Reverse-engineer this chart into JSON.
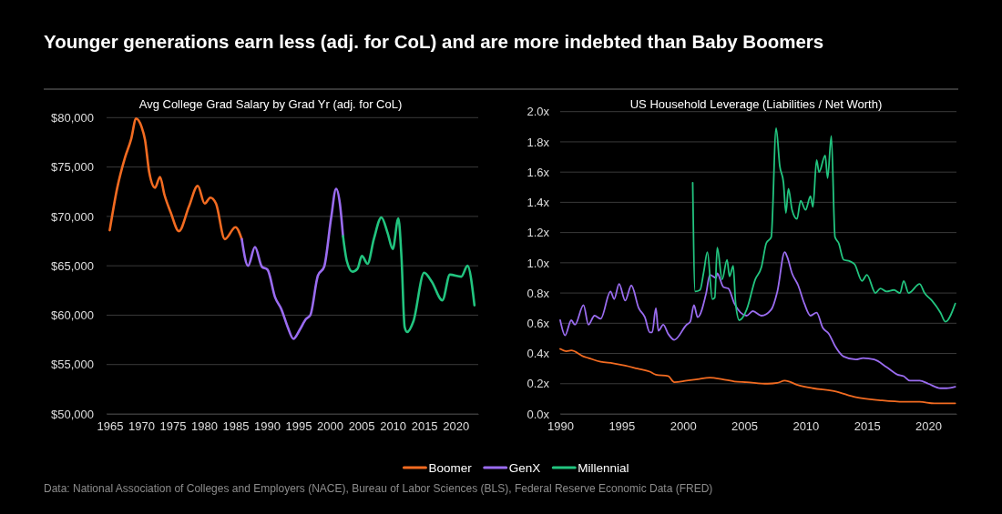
{
  "chart_data": [
    {
      "type": "other",
      "title": "Younger generations earn less (adj. for CoL) and are more indebted than Baby Boomers",
      "annotations": [
        "Data: National Association of Colleges and Employers (NACE), Bureau of Labor Sciences (BLS), Federal Reserve Economic Data (FRED)"
      ]
    },
    {
      "type": "line",
      "title": "Avg College Grad Salary by Grad Yr (adj. for CoL)",
      "xlim": [
        1964.5,
        2023.6
      ],
      "xticks": [
        1965,
        1970,
        1975,
        1980,
        1985,
        1990,
        1995,
        2000,
        2005,
        2010,
        2015,
        2020
      ],
      "ylim": [
        50000,
        80000
      ],
      "yticks": [
        {
          "value": 50000,
          "label": "$50,000"
        },
        {
          "value": 55000,
          "label": "$55,000"
        },
        {
          "value": 60000,
          "label": "$60,000"
        },
        {
          "value": 65000,
          "label": "$65,000"
        },
        {
          "value": 70000,
          "label": "$70,000"
        },
        {
          "value": 75000,
          "label": "$75,000"
        },
        {
          "value": 80000,
          "label": "$80,000"
        }
      ],
      "grid": "y",
      "series": [
        {
          "color": "#f26b21",
          "x": [
            1965,
            1966.2,
            1967.4,
            1968.4,
            1969.2,
            1970.1,
            1970.6,
            1971.3,
            1972.2,
            1973,
            1973.7,
            1974.7,
            1976,
            1977.6,
            1979,
            1980.1,
            1981,
            1981.9,
            1983.3,
            1985,
            1986
          ],
          "values": [
            68600,
            72900,
            75900,
            77800,
            79900,
            79000,
            77800,
            74400,
            72900,
            74000,
            72200,
            70400,
            68500,
            71000,
            73100,
            71300,
            71900,
            71300,
            67700,
            68900,
            67700
          ]
        },
        {
          "color": "#9a6cf0",
          "x": [
            1986,
            1987,
            1988.1,
            1989.2,
            1990.1,
            1991.3,
            1992.3,
            1993.3,
            1994.2,
            1995.2,
            1996.2,
            1996.9,
            1998.1,
            1999.1,
            2000.2,
            2001,
            2001.6,
            2002.1
          ],
          "values": [
            67700,
            65000,
            66900,
            64900,
            64600,
            61800,
            60600,
            58800,
            57600,
            58500,
            59600,
            60000,
            64000,
            64900,
            69800,
            72800,
            71300,
            68000
          ]
        },
        {
          "color": "#22c47f",
          "x": [
            2002.1,
            2002.7,
            2003.6,
            2004.4,
            2005.1,
            2006,
            2007,
            2008.2,
            2009.2,
            2010,
            2010.9,
            2011.4,
            2011.9,
            2012.3,
            2013.3,
            2015,
            2016.2,
            2017.9,
            2019.1,
            2020.9,
            2021.9,
            2023
          ],
          "values": [
            68000,
            65500,
            64400,
            64700,
            66000,
            65200,
            67700,
            69900,
            68300,
            66700,
            69800,
            65800,
            58800,
            58300,
            59400,
            64300,
            63400,
            61500,
            64100,
            63900,
            65000,
            61000
          ]
        }
      ]
    },
    {
      "type": "line",
      "title": "US Household Leverage (Liabilities / Net Worth)",
      "xlim": [
        1990,
        2022.3
      ],
      "xticks": [
        1990,
        1995,
        2000,
        2005,
        2010,
        2015,
        2020
      ],
      "ylim": [
        0,
        2
      ],
      "yticks": [
        {
          "value": 0,
          "label": "0.0x"
        },
        {
          "value": 0.2,
          "label": "0.2x"
        },
        {
          "value": 0.4,
          "label": "0.4x"
        },
        {
          "value": 0.6,
          "label": "0.6x"
        },
        {
          "value": 0.8,
          "label": "0.8x"
        },
        {
          "value": 1,
          "label": "1.0x"
        },
        {
          "value": 1.2,
          "label": "1.2x"
        },
        {
          "value": 1.4,
          "label": "1.4x"
        },
        {
          "value": 1.6,
          "label": "1.6x"
        },
        {
          "value": 1.8,
          "label": "1.8x"
        },
        {
          "value": 2,
          "label": "2.0x"
        }
      ],
      "grid": "y",
      "legend": "bottom",
      "series": [
        {
          "name": "Boomer",
          "color": "#f26b21",
          "x": [
            1990,
            1990.5,
            1990.9,
            1991.9,
            1992.3,
            1993.3,
            1994.3,
            1995.3,
            1996.3,
            1997.3,
            1997.8,
            1998.8,
            1999.3,
            2000.3,
            2001.2,
            2002.2,
            2003.2,
            2004.2,
            2005.2,
            2006.9,
            2007.7,
            2008.3,
            2009.4,
            2010.6,
            2012.4,
            2014.1,
            2016.1,
            2018,
            2019.3,
            2020.5,
            2021.5,
            2022.2
          ],
          "values": [
            0.43,
            0.415,
            0.42,
            0.38,
            0.37,
            0.345,
            0.335,
            0.32,
            0.3,
            0.28,
            0.26,
            0.25,
            0.21,
            0.22,
            0.23,
            0.24,
            0.23,
            0.215,
            0.21,
            0.2,
            0.205,
            0.22,
            0.19,
            0.17,
            0.15,
            0.11,
            0.09,
            0.08,
            0.08,
            0.07,
            0.07,
            0.07
          ]
        },
        {
          "name": "GenX",
          "color": "#9a6cf0",
          "x": [
            1990,
            1990.4,
            1990.9,
            1991.2,
            1991.9,
            1992.3,
            1992.8,
            1993.3,
            1994.1,
            1994.4,
            1994.8,
            1995.3,
            1995.8,
            1996.4,
            1996.9,
            1997.3,
            1997.5,
            1997.8,
            1998,
            1998.4,
            1998.8,
            1999.3,
            2000.3,
            2000.6,
            2000.9,
            2001.2,
            2001.9,
            2002.2,
            2002.7,
            2002.8,
            2003.3,
            2003.7,
            2004.2,
            2005.2,
            2005.7,
            2006.4,
            2007.2,
            2007.7,
            2008.3,
            2008.5,
            2008.9,
            2009.4,
            2009.9,
            2010.4,
            2010.9,
            2011.4,
            2011.9,
            2012.4,
            2013.1,
            2014.1,
            2014.7,
            2015.6,
            2016.6,
            2017.5,
            2018,
            2018.5,
            2019.3,
            2020,
            2021,
            2021.5,
            2022.2
          ],
          "values": [
            0.62,
            0.52,
            0.62,
            0.59,
            0.72,
            0.59,
            0.65,
            0.63,
            0.81,
            0.76,
            0.86,
            0.75,
            0.85,
            0.7,
            0.64,
            0.54,
            0.54,
            0.7,
            0.55,
            0.59,
            0.53,
            0.49,
            0.59,
            0.61,
            0.72,
            0.64,
            0.8,
            0.92,
            0.9,
            0.93,
            0.84,
            0.83,
            0.73,
            0.65,
            0.68,
            0.65,
            0.69,
            0.81,
            1.07,
            1.04,
            0.93,
            0.85,
            0.73,
            0.65,
            0.67,
            0.57,
            0.53,
            0.45,
            0.38,
            0.36,
            0.37,
            0.36,
            0.31,
            0.26,
            0.25,
            0.22,
            0.22,
            0.2,
            0.17,
            0.17,
            0.18
          ]
        },
        {
          "name": "Millennial",
          "color": "#22c47f",
          "x": [
            2000.8,
            2001,
            2001.4,
            2001.7,
            2002,
            2002.4,
            2002.6,
            2002.8,
            2003.2,
            2003.6,
            2003.8,
            2004.1,
            2004.3,
            2004.6,
            2005.2,
            2005.9,
            2006.4,
            2006.8,
            2007.2,
            2007.6,
            2007.9,
            2008.2,
            2008.4,
            2008.6,
            2008.9,
            2009.3,
            2009.6,
            2010,
            2010.4,
            2010.6,
            2010.9,
            2011.1,
            2011.6,
            2011.8,
            2012.1,
            2012.4,
            2012.7,
            2013.1,
            2013.6,
            2014,
            2014.6,
            2015,
            2015.7,
            2016.1,
            2016.6,
            2017.2,
            2017.7,
            2018,
            2018.4,
            2019.3,
            2019.7,
            2020.3,
            2021,
            2021.4,
            2022.2
          ],
          "values": [
            1.53,
            0.81,
            0.82,
            0.94,
            1.07,
            0.76,
            0.77,
            1.1,
            0.89,
            1.02,
            0.91,
            0.98,
            0.73,
            0.62,
            0.69,
            0.89,
            0.97,
            1.13,
            1.17,
            1.89,
            1.64,
            1.53,
            1.33,
            1.49,
            1.35,
            1.29,
            1.41,
            1.35,
            1.44,
            1.37,
            1.68,
            1.6,
            1.71,
            1.56,
            1.84,
            1.17,
            1.13,
            1.02,
            1.01,
            0.99,
            0.88,
            0.92,
            0.8,
            0.83,
            0.81,
            0.82,
            0.8,
            0.88,
            0.8,
            0.86,
            0.8,
            0.75,
            0.67,
            0.61,
            0.73
          ]
        }
      ]
    }
  ]
}
